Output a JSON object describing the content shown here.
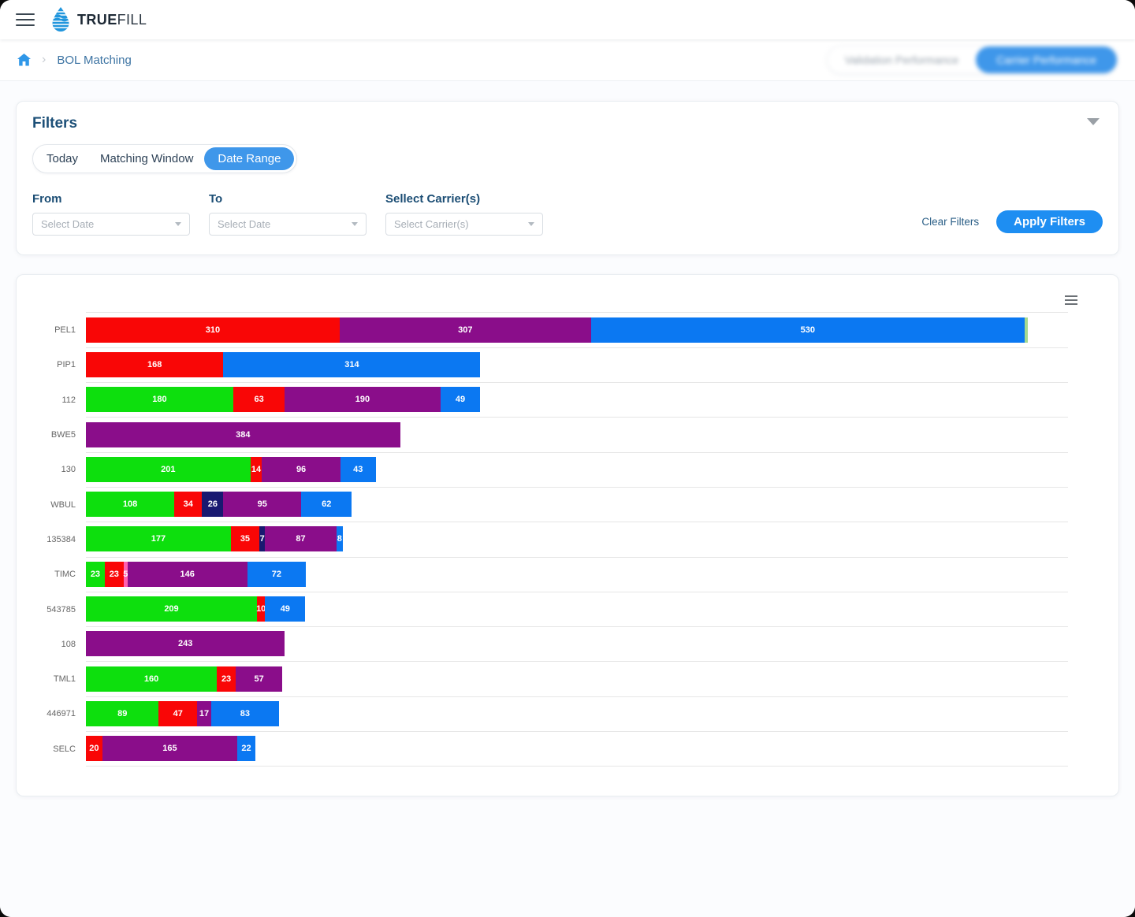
{
  "app": {
    "brand_bold": "TRUE",
    "brand_light": "FILL"
  },
  "breadcrumb": {
    "page": "BOL Matching",
    "separator": "›"
  },
  "header_toggle": {
    "left_label": "Validation Performance",
    "right_label": "Carrier Performance"
  },
  "filters": {
    "title": "Filters",
    "tabs": [
      {
        "label": "Today",
        "active": false
      },
      {
        "label": "Matching Window",
        "active": false
      },
      {
        "label": "Date Range",
        "active": true
      }
    ],
    "fields": [
      {
        "label": "From",
        "placeholder": "Select Date"
      },
      {
        "label": "To",
        "placeholder": "Select Date"
      },
      {
        "label": "Sellect Carrier(s)",
        "placeholder": "Select Carrier(s)"
      }
    ],
    "clear_label": "Clear Filters",
    "apply_label": "Apply Filters"
  },
  "colors": {
    "accent_blue": "#3f97ea",
    "apply_blue": "#1e8ef2",
    "heading_navy": "#1d5078",
    "breadcrumb_blue": "#3d74a3",
    "home_icon_blue": "#2f97e8"
  },
  "chart_data": {
    "type": "bar",
    "stacked": true,
    "orientation": "horizontal",
    "title": "",
    "xlabel": "",
    "ylabel": "",
    "legend": "none",
    "grid": "category-separator-lines",
    "xlim": [
      0,
      1200
    ],
    "colors": {
      "green": "#0ddf0d",
      "red": "#f90606",
      "navy": "#191970",
      "purple": "#8a0d8a",
      "blue": "#0b78f2",
      "pink": "#ff5fb0",
      "lightgreen": "#a6da90"
    },
    "categories": [
      "PEL1",
      "PIP1",
      "112",
      "BWE5",
      "130",
      "WBUL",
      "135384",
      "TIMC",
      "543785",
      "108",
      "TML1",
      "446971",
      "SELC"
    ],
    "rows": [
      {
        "category": "PEL1",
        "segments": [
          {
            "color": "red",
            "value": 310
          },
          {
            "color": "purple",
            "value": 307
          },
          {
            "color": "blue",
            "value": 530
          },
          {
            "color": "lightgreen",
            "value": 4,
            "label": ""
          }
        ]
      },
      {
        "category": "PIP1",
        "segments": [
          {
            "color": "red",
            "value": 168
          },
          {
            "color": "blue",
            "value": 314
          }
        ]
      },
      {
        "category": "112",
        "segments": [
          {
            "color": "green",
            "value": 180
          },
          {
            "color": "red",
            "value": 63
          },
          {
            "color": "purple",
            "value": 190
          },
          {
            "color": "blue",
            "value": 49
          }
        ]
      },
      {
        "category": "BWE5",
        "segments": [
          {
            "color": "purple",
            "value": 384
          }
        ]
      },
      {
        "category": "130",
        "segments": [
          {
            "color": "green",
            "value": 201
          },
          {
            "color": "red",
            "value": 14
          },
          {
            "color": "purple",
            "value": 96
          },
          {
            "color": "blue",
            "value": 43
          }
        ]
      },
      {
        "category": "WBUL",
        "segments": [
          {
            "color": "green",
            "value": 108
          },
          {
            "color": "red",
            "value": 34
          },
          {
            "color": "navy",
            "value": 26
          },
          {
            "color": "purple",
            "value": 95
          },
          {
            "color": "blue",
            "value": 62
          }
        ]
      },
      {
        "category": "135384",
        "segments": [
          {
            "color": "green",
            "value": 177
          },
          {
            "color": "red",
            "value": 35
          },
          {
            "color": "navy",
            "value": 7
          },
          {
            "color": "purple",
            "value": 87
          },
          {
            "color": "blue",
            "value": 8
          }
        ]
      },
      {
        "category": "TIMC",
        "segments": [
          {
            "color": "green",
            "value": 23
          },
          {
            "color": "red",
            "value": 23
          },
          {
            "color": "pink",
            "value": 5
          },
          {
            "color": "purple",
            "value": 146
          },
          {
            "color": "blue",
            "value": 72
          }
        ]
      },
      {
        "category": "543785",
        "segments": [
          {
            "color": "green",
            "value": 209
          },
          {
            "color": "red",
            "value": 10
          },
          {
            "color": "blue",
            "value": 49
          }
        ]
      },
      {
        "category": "108",
        "segments": [
          {
            "color": "purple",
            "value": 243
          }
        ]
      },
      {
        "category": "TML1",
        "segments": [
          {
            "color": "green",
            "value": 160
          },
          {
            "color": "red",
            "value": 23
          },
          {
            "color": "purple",
            "value": 57
          }
        ]
      },
      {
        "category": "446971",
        "segments": [
          {
            "color": "green",
            "value": 89
          },
          {
            "color": "red",
            "value": 47
          },
          {
            "color": "purple",
            "value": 17
          },
          {
            "color": "blue",
            "value": 83
          }
        ]
      },
      {
        "category": "SELC",
        "segments": [
          {
            "color": "red",
            "value": 20
          },
          {
            "color": "purple",
            "value": 165
          },
          {
            "color": "blue",
            "value": 22
          }
        ]
      }
    ]
  }
}
